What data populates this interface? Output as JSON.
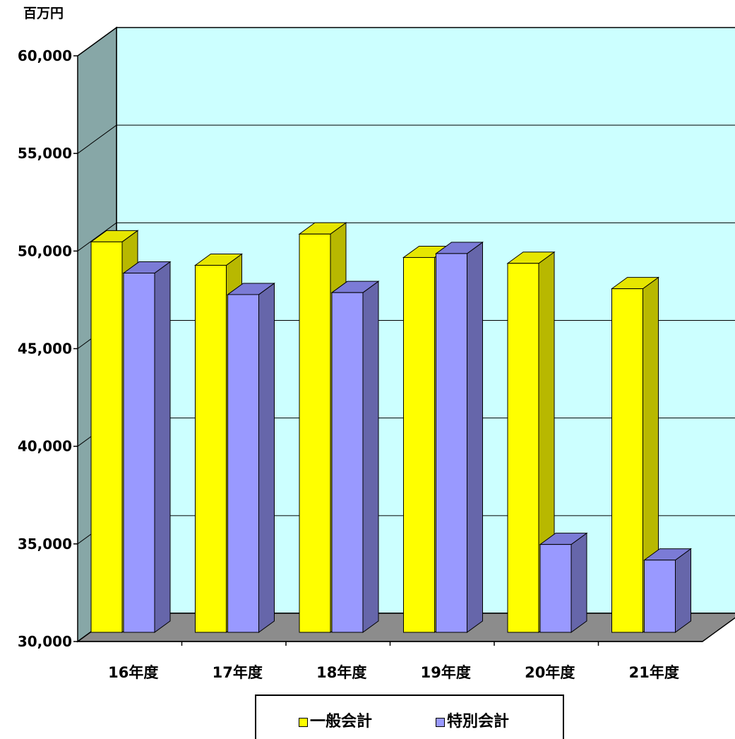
{
  "chart_data": {
    "type": "bar",
    "style": "3d-clustered-column",
    "unit_label": "百万円",
    "categories": [
      "16年度",
      "17年度",
      "18年度",
      "19年度",
      "20年度",
      "21年度"
    ],
    "series": [
      {
        "name": "一般会計",
        "values": [
          50000,
          48800,
          50400,
          49200,
          48900,
          47600
        ]
      },
      {
        "name": "特別会計",
        "values": [
          48400,
          47300,
          47400,
          49400,
          34500,
          33700
        ]
      }
    ],
    "yticks": [
      "30,000",
      "35,000",
      "40,000",
      "45,000",
      "50,000",
      "55,000",
      "60,000"
    ],
    "ylim": [
      30000,
      60000
    ],
    "grid": true,
    "legend_position": "bottom"
  },
  "colors": {
    "wall": "#ccffff",
    "side_wall": "#87a7a7",
    "floor": "#8c8c8c",
    "general_front": "#ffff00",
    "general_side": "#b8b800",
    "general_top": "#e6e600",
    "special_front": "#9999ff",
    "special_side": "#6666aa",
    "special_top": "#7b7bd6"
  }
}
